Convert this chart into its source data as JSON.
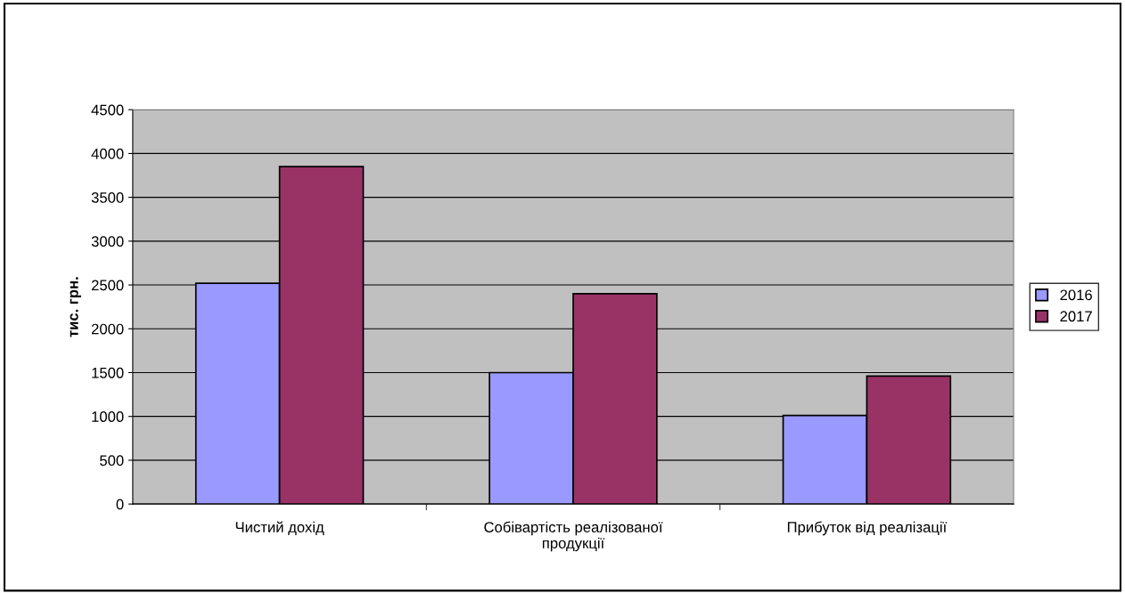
{
  "chart_data": {
    "type": "bar",
    "ylabel": "тис. грн.",
    "categories": [
      "Чистий дохід",
      "Собівартість реалізованої\nпродукції",
      "Прибуток від реалізації"
    ],
    "series": [
      {
        "name": "2016",
        "color": "#9999ff",
        "values": [
          2520,
          1500,
          1010
        ]
      },
      {
        "name": "2017",
        "color": "#993366",
        "values": [
          3850,
          2400,
          1460
        ]
      }
    ],
    "ylim": [
      0,
      4500
    ],
    "yticks": [
      0,
      500,
      1000,
      1500,
      2000,
      2500,
      3000,
      3500,
      4000,
      4500
    ],
    "grid": "y",
    "legend": "right"
  }
}
